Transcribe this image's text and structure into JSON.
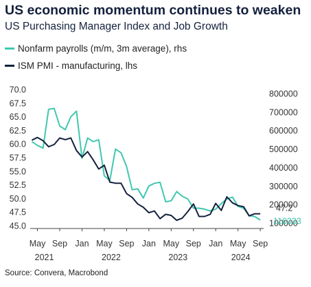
{
  "header": {
    "title": "US economic momentum continues to weaken",
    "subtitle": "US Purchasing Manager Index and Job Growth"
  },
  "source": "Source: Convera, Macrobond",
  "colors": {
    "payrolls": "#3fc8b0",
    "pmi": "#14213d",
    "title": "#14213d"
  },
  "chart_data": {
    "type": "line",
    "title": "US economic momentum continues to weaken",
    "subtitle": "US Purchasing Manager Index and Job Growth",
    "legend_position": "top-left",
    "grid": false,
    "x_tick_labels": [
      "May",
      "Sep",
      "Jan",
      "May",
      "Sep",
      "Jan",
      "May",
      "Sep",
      "Jan",
      "May",
      "Sep"
    ],
    "x_year_labels": [
      "2021",
      "2022",
      "2023",
      "2024"
    ],
    "x_range": [
      "2021-04",
      "2024-09"
    ],
    "y_left": {
      "ticks": [
        "70.0",
        "67.5",
        "65.0",
        "62.5",
        "60.0",
        "57.5",
        "55.0",
        "52.5",
        "50.0",
        "47.5",
        "45.0"
      ],
      "range": [
        45.0,
        70.0
      ]
    },
    "y_right": {
      "ticks": [
        "800000",
        "700000",
        "600000",
        "500000",
        "400000",
        "300000",
        "200000",
        "100000"
      ],
      "range": [
        100000,
        800000
      ]
    },
    "end_labels": {
      "pmi": "47.2",
      "payrolls": "116333"
    },
    "series": [
      {
        "name": "Nonfarm payrolls (m/m, 3m average), rhs",
        "axis": "right",
        "x": [
          "2021-04",
          "2021-05",
          "2021-06",
          "2021-07",
          "2021-08",
          "2021-09",
          "2021-10",
          "2021-11",
          "2021-12",
          "2022-01",
          "2022-02",
          "2022-03",
          "2022-04",
          "2022-05",
          "2022-06",
          "2022-07",
          "2022-08",
          "2022-09",
          "2022-10",
          "2022-11",
          "2022-12",
          "2023-01",
          "2023-02",
          "2023-03",
          "2023-04",
          "2023-05",
          "2023-06",
          "2023-07",
          "2023-08",
          "2023-09",
          "2023-10",
          "2023-11",
          "2023-12",
          "2024-01",
          "2024-02",
          "2024-03",
          "2024-04",
          "2024-05",
          "2024-06",
          "2024-07",
          "2024-08",
          "2024-09"
        ],
        "values": [
          540000,
          520000,
          505000,
          715000,
          720000,
          625000,
          605000,
          675000,
          705000,
          450000,
          560000,
          540000,
          550000,
          355000,
          330000,
          500000,
          480000,
          405000,
          280000,
          285000,
          235000,
          300000,
          315000,
          320000,
          215000,
          220000,
          270000,
          245000,
          230000,
          180000,
          180000,
          175000,
          165000,
          175000,
          205000,
          230000,
          240000,
          190000,
          180000,
          140000,
          135000,
          116333
        ]
      },
      {
        "name": "ISM PMI - manufacturing, lhs",
        "axis": "left",
        "x": [
          "2021-04",
          "2021-05",
          "2021-06",
          "2021-07",
          "2021-08",
          "2021-09",
          "2021-10",
          "2021-11",
          "2021-12",
          "2022-01",
          "2022-02",
          "2022-03",
          "2022-04",
          "2022-05",
          "2022-06",
          "2022-07",
          "2022-08",
          "2022-09",
          "2022-10",
          "2022-11",
          "2022-12",
          "2023-01",
          "2023-02",
          "2023-03",
          "2023-04",
          "2023-05",
          "2023-06",
          "2023-07",
          "2023-08",
          "2023-09",
          "2023-10",
          "2023-11",
          "2023-12",
          "2024-01",
          "2024-02",
          "2024-03",
          "2024-04",
          "2024-05",
          "2024-06",
          "2024-07",
          "2024-08",
          "2024-09"
        ],
        "values": [
          60.7,
          61.2,
          60.6,
          59.5,
          59.9,
          61.1,
          60.8,
          61.1,
          58.8,
          57.6,
          58.6,
          57.1,
          55.4,
          56.1,
          53.0,
          52.8,
          52.8,
          50.9,
          50.2,
          49.0,
          48.4,
          47.4,
          47.7,
          46.3,
          47.1,
          46.9,
          46.0,
          46.4,
          47.6,
          49.0,
          46.7,
          46.7,
          47.1,
          49.1,
          47.8,
          50.3,
          49.2,
          48.7,
          48.5,
          46.8,
          47.2,
          47.2
        ]
      }
    ]
  }
}
